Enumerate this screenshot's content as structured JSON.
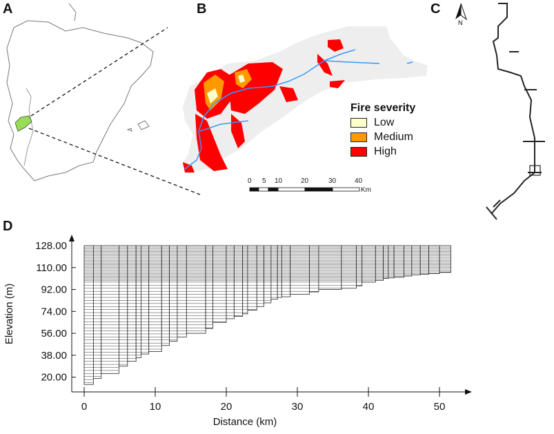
{
  "panels": {
    "a": "A",
    "b": "B",
    "c": "C",
    "d": "D"
  },
  "legend": {
    "title": "Fire severity",
    "items": [
      {
        "label": "Low",
        "color": "#ffffcc"
      },
      {
        "label": "Medium",
        "color": "#ff9900"
      },
      {
        "label": "High",
        "color": "#ff0000"
      }
    ]
  },
  "scale_bar": {
    "labels": [
      "0",
      "5",
      "10",
      "20",
      "30",
      "40"
    ],
    "unit": "Km"
  },
  "north_arrow": {
    "label": "N"
  },
  "colors": {
    "watershed": "#eeeeee",
    "river": "#3399ff",
    "study_area": "#99dd55"
  },
  "chart_data": {
    "type": "area",
    "title": "",
    "xlabel": "Distance (km)",
    "ylabel": "Elevation (m)",
    "x_ticks": [
      "0",
      "10",
      "20",
      "30",
      "40",
      "50"
    ],
    "y_ticks": [
      "20.00",
      "38.00",
      "56.00",
      "74.00",
      "92.00",
      "110.00"
    ],
    "y_ticks_top": "128.00",
    "xlim": [
      0,
      52
    ],
    "ylim": [
      14,
      128
    ],
    "grid_top_elevation": 128,
    "bed_profile": {
      "distance_km": [
        0,
        1.3,
        2.4,
        4.9,
        6.1,
        7.3,
        8,
        9.1,
        10.9,
        12,
        13.1,
        14.4,
        17.1,
        18.1,
        20,
        21.1,
        22.3,
        23,
        24.3,
        25.3,
        26.3,
        27.2,
        27.8,
        29,
        31.7,
        33,
        36.2,
        38.3,
        39.1,
        41,
        42.1,
        42.8,
        43.6,
        45,
        46.1,
        47.3,
        48.5,
        50,
        51.6
      ],
      "elevation_m": [
        14,
        19,
        23,
        29,
        33,
        36,
        39,
        41,
        46,
        49.5,
        53,
        56,
        60,
        65,
        68,
        70,
        72,
        75,
        78,
        81,
        84,
        85.5,
        86,
        88,
        90,
        92,
        93,
        95,
        98,
        99.5,
        101,
        101.5,
        102,
        103,
        104,
        104.5,
        105,
        106,
        106
      ]
    }
  }
}
